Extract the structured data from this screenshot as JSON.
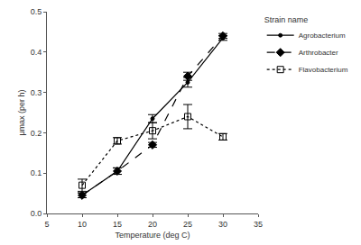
{
  "chart_data": {
    "type": "line",
    "x_label": "Temperature (deg C)",
    "y_label": "μmax (per h)",
    "legend_title": "Strain name",
    "legend": "right",
    "grid": false,
    "x": [
      10,
      15,
      20,
      25,
      30
    ],
    "xlim": [
      5,
      35
    ],
    "xticks": [
      5,
      10,
      15,
      20,
      25,
      30,
      35
    ],
    "ylim": [
      0,
      0.5
    ],
    "yticks": [
      {
        "value": 0,
        "label": "0.0"
      },
      0.1,
      0.2,
      0.3,
      0.4,
      0.5
    ],
    "series": [
      {
        "name": "Agrobacterium",
        "color": "#000000",
        "marker": "circle",
        "line_style": "solid",
        "values": [
          0.045,
          0.105,
          0.235,
          0.325,
          0.435
        ],
        "error": [
          0.006,
          0.008,
          0.01,
          0.012,
          0.006
        ]
      },
      {
        "name": "Arthrobacter",
        "color": "#000000",
        "marker": "diamond",
        "line_style": "dash",
        "values": [
          0.045,
          0.105,
          0.17,
          0.34,
          0.44
        ],
        "error": [
          0.006,
          0.008,
          0.006,
          0.01,
          0.006
        ]
      },
      {
        "name": "Flavobacterium",
        "color": "#000000",
        "marker": "square-open",
        "line_style": "dot",
        "values": [
          0.07,
          0.18,
          0.205,
          0.24,
          0.19
        ],
        "error": [
          0.015,
          0.008,
          0.02,
          0.03,
          0.008
        ]
      }
    ]
  }
}
